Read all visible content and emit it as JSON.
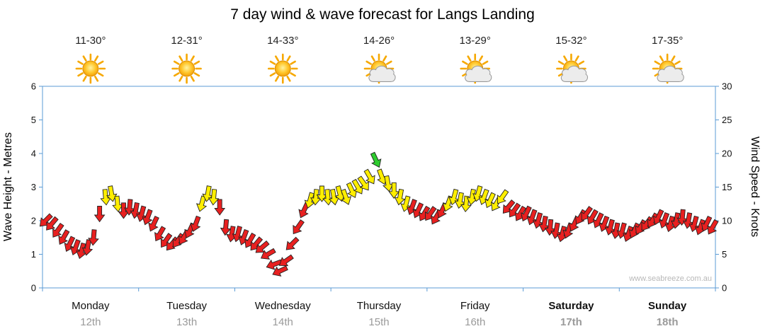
{
  "title": "7 day wind & wave forecast for Langs Landing",
  "watermark": "www.seabreeze.com.au",
  "left_axis": {
    "label": "Wave Height - Metres",
    "ticks": [
      0,
      1,
      2,
      3,
      4,
      5,
      6
    ]
  },
  "right_axis": {
    "label": "Wind Speed - Knots",
    "ticks": [
      0,
      5,
      10,
      15,
      20,
      25,
      30
    ]
  },
  "axis_color": "#5b9bd5",
  "days": [
    {
      "name": "Monday",
      "date": "12th",
      "temp": "11-30°",
      "icon": "sun",
      "bold": false
    },
    {
      "name": "Tuesday",
      "date": "13th",
      "temp": "12-31°",
      "icon": "sun",
      "bold": false
    },
    {
      "name": "Wednesday",
      "date": "14th",
      "temp": "14-33°",
      "icon": "sun",
      "bold": false
    },
    {
      "name": "Thursday",
      "date": "15th",
      "temp": "14-26°",
      "icon": "suncloud",
      "bold": false
    },
    {
      "name": "Friday",
      "date": "16th",
      "temp": "13-29°",
      "icon": "suncloud",
      "bold": false
    },
    {
      "name": "Saturday",
      "date": "17th",
      "temp": "15-32°",
      "icon": "suncloud",
      "bold": true
    },
    {
      "name": "Sunday",
      "date": "18th",
      "temp": "17-35°",
      "icon": "suncloud",
      "bold": true
    }
  ],
  "chart_data": {
    "type": "scatter",
    "subtype": "wind-arrow-forecast",
    "title": "7 day wind & wave forecast for Langs Landing",
    "x_categories": [
      "Monday 12th",
      "Tuesday 13th",
      "Wednesday 14th",
      "Thursday 15th",
      "Friday 16th",
      "Saturday 17th",
      "Sunday 18th"
    ],
    "ylabel_left": "Wave Height - Metres",
    "ylabel_right": "Wind Speed - Knots",
    "ylim_metres": [
      0,
      6
    ],
    "ylim_knots": [
      0,
      30
    ],
    "grid": false,
    "points_per_day": 16,
    "wind_speed_knots_by_day": [
      [
        10,
        9.5,
        8.5,
        7.5,
        6.5,
        6,
        5.5,
        6,
        7.5,
        11,
        13.5,
        14,
        12.5,
        11.5,
        12,
        11.5
      ],
      [
        11,
        10.5,
        9.5,
        8,
        7,
        6.5,
        7,
        7.5,
        8.5,
        9.5,
        12.5,
        14,
        13.5,
        12,
        9,
        8
      ],
      [
        8,
        7.5,
        7,
        6.5,
        6,
        5,
        3.5,
        2.5,
        4,
        6.5,
        9,
        11.5,
        13,
        13.5,
        14,
        13.5
      ],
      [
        13.5,
        14,
        13.5,
        14.5,
        15,
        15.5,
        16.5,
        19,
        16.5,
        15.5,
        14.5,
        13.5,
        12.5,
        12,
        11.5,
        11
      ],
      [
        11,
        10.5,
        11.5,
        12.5,
        13.5,
        13,
        12.5,
        13.5,
        14,
        13.5,
        13,
        12.5,
        13.5,
        12,
        11.5,
        11
      ],
      [
        11,
        10.5,
        10,
        9.5,
        9,
        8.5,
        8,
        8.5,
        9.5,
        10.5,
        11,
        10.5,
        10,
        9.5,
        9,
        8.5
      ],
      [
        8.5,
        8,
        8.5,
        9,
        9.5,
        10,
        10.5,
        10,
        9.5,
        10,
        10.5,
        10,
        9.5,
        9,
        9.5,
        9
      ]
    ],
    "wind_direction_deg_by_day": [
      [
        225,
        220,
        215,
        210,
        205,
        200,
        195,
        190,
        185,
        180,
        175,
        170,
        175,
        180,
        185,
        190
      ],
      [
        195,
        200,
        205,
        210,
        215,
        220,
        215,
        210,
        205,
        200,
        195,
        190,
        185,
        180,
        185,
        190
      ],
      [
        195,
        200,
        210,
        220,
        230,
        240,
        250,
        245,
        235,
        225,
        215,
        205,
        195,
        185,
        180,
        175
      ],
      [
        170,
        165,
        160,
        155,
        150,
        145,
        150,
        155,
        160,
        170,
        180,
        190,
        195,
        200,
        205,
        210
      ],
      [
        215,
        210,
        205,
        200,
        195,
        190,
        185,
        190,
        195,
        200,
        205,
        210,
        215,
        220,
        215,
        210
      ],
      [
        205,
        200,
        195,
        190,
        185,
        190,
        195,
        200,
        205,
        210,
        215,
        210,
        205,
        200,
        195,
        190
      ],
      [
        195,
        200,
        205,
        210,
        215,
        210,
        205,
        200,
        195,
        190,
        185,
        190,
        195,
        200,
        205,
        210
      ]
    ],
    "color_scale": {
      "red_below_knots": 12.5,
      "yellow_below_knots": 18,
      "green_min_knots": 18
    },
    "arrow_colors": {
      "red": "#e82020",
      "yellow": "#ffee00",
      "green": "#2ecc2e"
    }
  }
}
